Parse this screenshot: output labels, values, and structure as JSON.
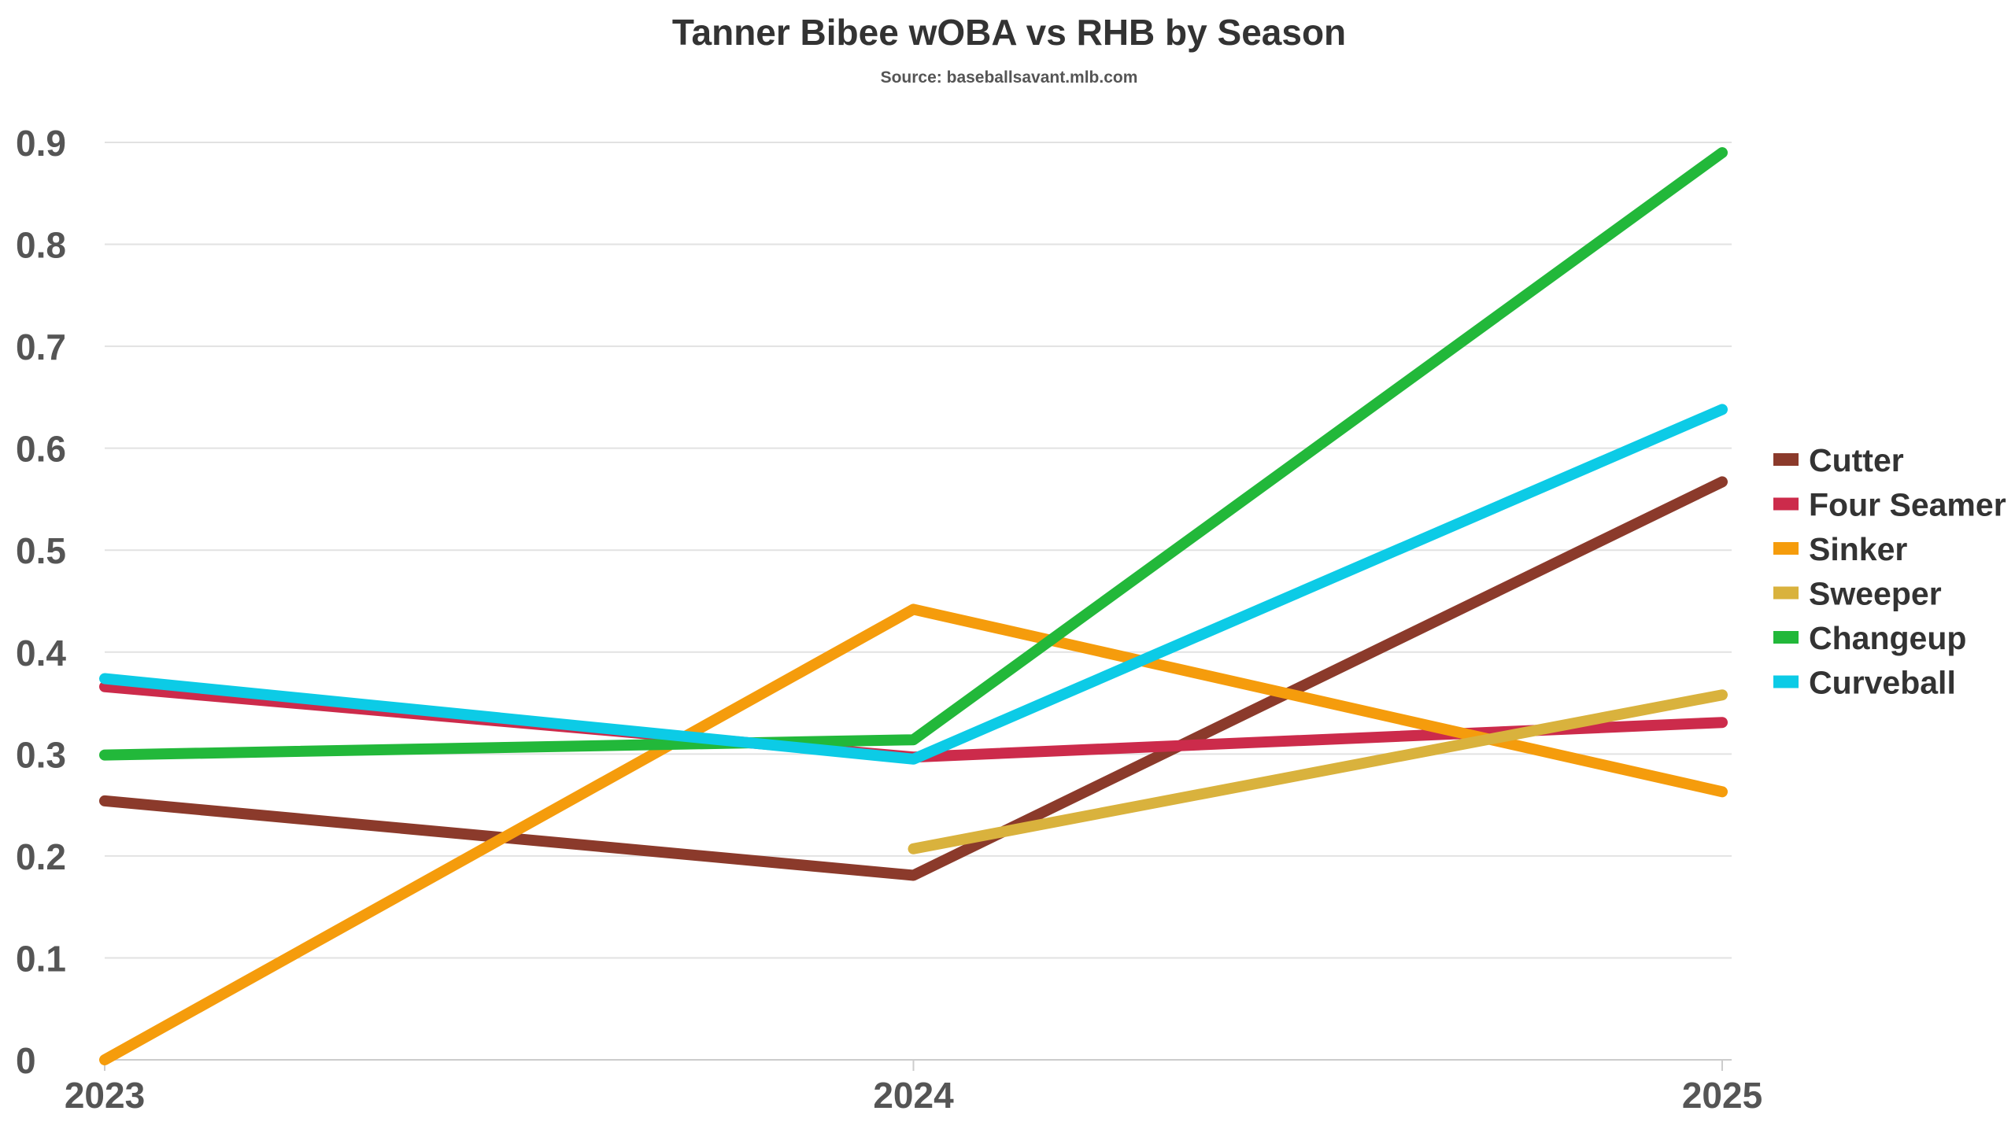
{
  "chart_data": {
    "type": "line",
    "title": "Tanner Bibee wOBA vs RHB by Season",
    "subtitle": "Source: baseballsavant.mlb.com",
    "xlabel": "",
    "ylabel": "",
    "x": [
      "2023",
      "2024",
      "2025"
    ],
    "ylim": [
      0,
      0.9
    ],
    "yticks": [
      "0",
      "0.1",
      "0.2",
      "0.3",
      "0.4",
      "0.5",
      "0.6",
      "0.7",
      "0.8",
      "0.9"
    ],
    "grid": true,
    "legend_position": "right",
    "series": [
      {
        "name": "Cutter",
        "color": "#8b3a2b",
        "values": [
          0.254,
          0.181,
          0.567
        ]
      },
      {
        "name": "Four Seamer",
        "color": "#cc2b4b",
        "values": [
          0.366,
          0.297,
          0.331
        ]
      },
      {
        "name": "Sinker",
        "color": "#f59c0c",
        "values": [
          0.0,
          0.442,
          0.263
        ]
      },
      {
        "name": "Sweeper",
        "color": "#d9b23d",
        "values": [
          null,
          0.207,
          0.358
        ]
      },
      {
        "name": "Changeup",
        "color": "#22b83a",
        "values": [
          0.299,
          0.314,
          0.89
        ]
      },
      {
        "name": "Curveball",
        "color": "#0ccbe6",
        "values": [
          0.374,
          0.295,
          0.638
        ]
      }
    ]
  }
}
